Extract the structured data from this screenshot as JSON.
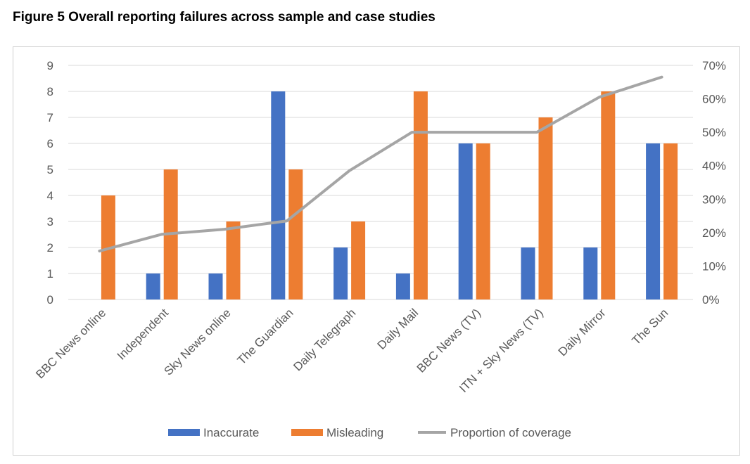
{
  "figure": {
    "title": "Figure 5 Overall reporting failures across sample and case studies"
  },
  "chart_data": {
    "type": "bar",
    "title": "Figure 5 Overall reporting failures across sample and case studies",
    "categories": [
      "BBC News online",
      "Independent",
      "Sky News online",
      "The Guardian",
      "Daily Telegraph",
      "Daily Mail",
      "BBC News (TV)",
      "ITN + Sky News (TV)",
      "Daily Mirror",
      "The Sun"
    ],
    "series": [
      {
        "name": "Inaccurate",
        "type": "bar",
        "axis": "left",
        "color": "#4472c4",
        "values": [
          0,
          1,
          1,
          8,
          2,
          1,
          6,
          2,
          2,
          6
        ]
      },
      {
        "name": "Misleading",
        "type": "bar",
        "axis": "left",
        "color": "#ed7d31",
        "values": [
          4,
          5,
          3,
          5,
          3,
          8,
          6,
          7,
          8,
          6
        ]
      },
      {
        "name": "Proportion of coverage",
        "type": "line",
        "axis": "right",
        "color": "#a5a5a5",
        "values": [
          0.145,
          0.195,
          0.21,
          0.235,
          0.385,
          0.5,
          0.5,
          0.5,
          0.605,
          0.665
        ]
      }
    ],
    "y_left": {
      "min": 0,
      "max": 9,
      "ticks": [
        "0",
        "1",
        "2",
        "3",
        "4",
        "5",
        "6",
        "7",
        "8",
        "9"
      ]
    },
    "y_right": {
      "min": 0,
      "max": 0.7,
      "ticks": [
        "0%",
        "10%",
        "20%",
        "30%",
        "40%",
        "50%",
        "60%",
        "70%"
      ]
    },
    "grid": true,
    "legend": "bottom"
  }
}
